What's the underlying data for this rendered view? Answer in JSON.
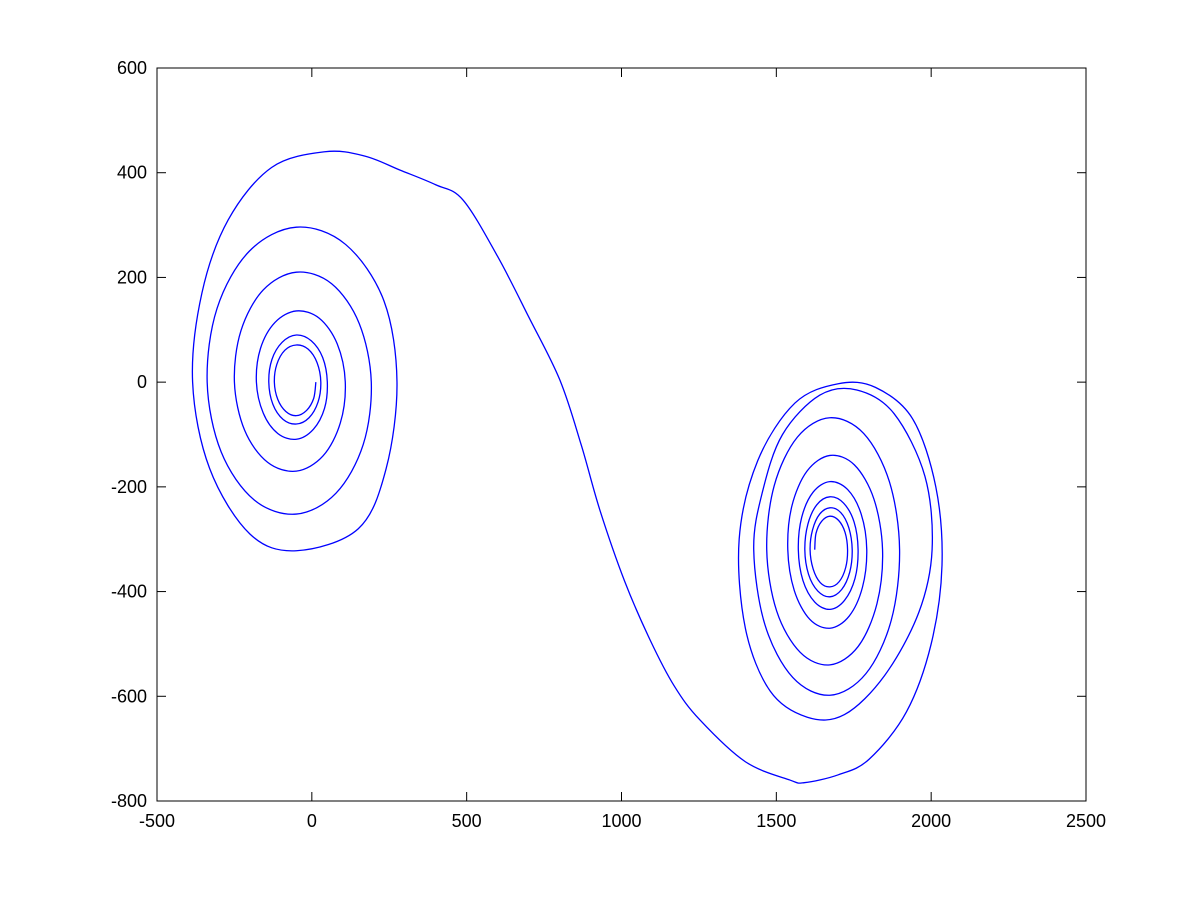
{
  "chart_data": {
    "type": "line",
    "x": [
      13,
      6,
      -17,
      -50,
      -84,
      -110,
      -121,
      -113,
      -87,
      -50,
      -12,
      17,
      29,
      20,
      -9,
      -50,
      -93,
      -126,
      -139,
      -129,
      -96,
      -50,
      -2,
      35,
      50,
      41,
      5,
      -50,
      -110,
      -157,
      -179,
      -166,
      -119,
      -50,
      24,
      82,
      108,
      92,
      36,
      -50,
      -143,
      -217,
      -250,
      -229,
      -157,
      -50,
      64,
      153,
      192,
      166,
      78,
      -50,
      -186,
      -293,
      -338,
      -306,
      -202,
      -50,
      109,
      233,
      275,
      240,
      150,
      -50,
      -200,
      -330,
      -385,
      -355,
      -270,
      -130,
      42,
      170,
      285,
      400,
      488,
      600,
      700,
      801,
      870,
      930,
      1010,
      1092,
      1170,
      1253,
      1400,
      1544,
      1590,
      1700,
      1800,
      1920,
      2000,
      2035,
      2015,
      1940,
      1820,
      1700,
      1560,
      1440,
      1380,
      1400,
      1480,
      1600,
      1720,
      1850,
      1960,
      2003,
      1980,
      1880,
      1760,
      1640,
      1520,
      1455,
      1427,
      1463,
      1553,
      1673,
      1789,
      1871,
      1898,
      1865,
      1782,
      1673,
      1568,
      1493,
      1469,
      1501,
      1577,
      1673,
      1764,
      1825,
      1843,
      1815,
      1752,
      1673,
      1599,
      1550,
      1537,
      1558,
      1608,
      1673,
      1735,
      1778,
      1792,
      1774,
      1730,
      1673,
      1619,
      1582,
      1571,
      1586,
      1624,
      1673,
      1720,
      1754,
      1764,
      1751,
      1717,
      1673,
      1631,
      1602,
      1592,
      1604,
      1634,
      1673,
      1711,
      1737,
      1745,
      1734,
      1708,
      1673,
      1640,
      1617,
      1609,
      1619,
      1642,
      1673,
      1703,
      1724,
      1730,
      1722,
      1701,
      1673,
      1646,
      1628,
      1624
    ],
    "series": [
      {
        "color": "#0000ff",
        "values": [
          0,
          -31,
          -54,
          -64,
          -56,
          -33,
          0,
          34,
          61,
          71,
          63,
          37,
          0,
          -38,
          -68,
          -80,
          -71,
          -42,
          0,
          43,
          76,
          90,
          79,
          47,
          0,
          -50,
          -90,
          -109,
          -98,
          -59,
          0,
          64,
          114,
          136,
          122,
          73,
          0,
          -78,
          -141,
          -170,
          -153,
          -92,
          0,
          98,
          176,
          210,
          188,
          112,
          0,
          -119,
          -212,
          -252,
          -225,
          -133,
          0,
          141,
          250,
          296,
          263,
          155,
          0,
          -165,
          -280,
          -322,
          -290,
          -165,
          0,
          170,
          310,
          410,
          440,
          432,
          405,
          377,
          348,
          240,
          125,
          4,
          -120,
          -244,
          -380,
          -492,
          -580,
          -645,
          -725,
          -760,
          -765,
          -750,
          -720,
          -630,
          -500,
          -350,
          -200,
          -70,
          -10,
          -3,
          -40,
          -150,
          -300,
          -470,
          -590,
          -640,
          -635,
          -560,
          -440,
          -320,
          -180,
          -60,
          -15,
          -25,
          -100,
          -210,
          -320,
          -463,
          -564,
          -598,
          -557,
          -455,
          -320,
          -190,
          -98,
          -68,
          -105,
          -198,
          -320,
          -437,
          -516,
          -540,
          -505,
          -423,
          -320,
          -223,
          -158,
          -140,
          -170,
          -237,
          -320,
          -398,
          -453,
          -470,
          -447,
          -392,
          -320,
          -252,
          -205,
          -190,
          -210,
          -258,
          -320,
          -379,
          -420,
          -434,
          -417,
          -375,
          -320,
          -267,
          -231,
          -219,
          -234,
          -271,
          -320,
          -367,
          -399,
          -410,
          -396,
          -363,
          -320,
          -278,
          -249,
          -240,
          -252,
          -282,
          -320,
          -357,
          -383,
          -391,
          -381,
          -354,
          -320,
          -287,
          -264,
          -256,
          -266,
          -289,
          -320
        ]
      }
    ],
    "xlim": [
      -500,
      2500
    ],
    "xticks": [
      -500,
      0,
      500,
      1000,
      1500,
      2000,
      2500
    ],
    "ylim": [
      -800,
      600
    ],
    "yticks": [
      -800,
      -600,
      -400,
      -200,
      0,
      200,
      400,
      600
    ]
  }
}
